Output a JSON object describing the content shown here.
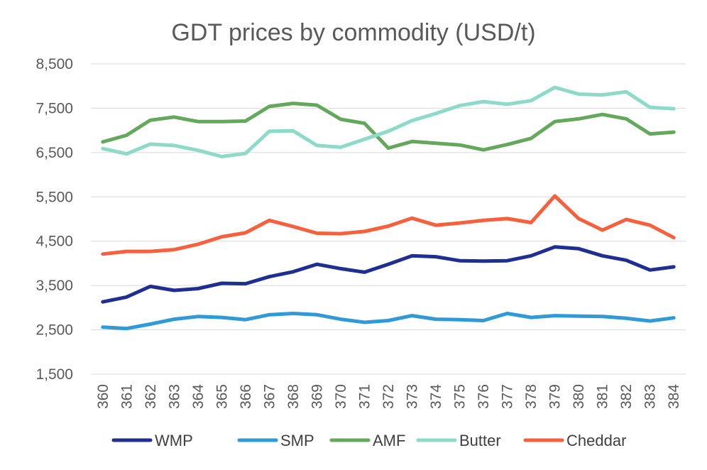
{
  "chart_data": {
    "type": "line",
    "title": "GDT prices by commodity (USD/t)",
    "xlabel": "",
    "ylabel": "",
    "ylim": [
      1500,
      8500
    ],
    "y_ticks": [
      1500,
      2500,
      3500,
      4500,
      5500,
      6500,
      7500,
      8500
    ],
    "y_tick_labels": [
      "1,500",
      "2,500",
      "3,500",
      "4,500",
      "5,500",
      "6,500",
      "7,500",
      "8,500"
    ],
    "grid": true,
    "legend_position": "bottom",
    "categories": [
      "360",
      "361",
      "362",
      "363",
      "364",
      "365",
      "366",
      "367",
      "368",
      "369",
      "370",
      "371",
      "372",
      "373",
      "374",
      "375",
      "376",
      "377",
      "378",
      "379",
      "380",
      "381",
      "382",
      "383",
      "384"
    ],
    "series": [
      {
        "name": "WMP",
        "color": "#1f2f8f",
        "values": [
          3130,
          3240,
          3480,
          3390,
          3430,
          3550,
          3540,
          3700,
          3810,
          3980,
          3880,
          3800,
          3980,
          4170,
          4150,
          4060,
          4050,
          4060,
          4170,
          4370,
          4330,
          4170,
          4070,
          3850,
          3920
        ]
      },
      {
        "name": "SMP",
        "color": "#2e9ad6",
        "values": [
          2560,
          2530,
          2630,
          2740,
          2800,
          2780,
          2730,
          2840,
          2870,
          2840,
          2740,
          2670,
          2710,
          2820,
          2740,
          2730,
          2710,
          2870,
          2780,
          2820,
          2810,
          2800,
          2760,
          2700,
          2770
        ]
      },
      {
        "name": "AMF",
        "color": "#64a85c",
        "values": [
          6740,
          6890,
          7230,
          7300,
          7200,
          7200,
          7210,
          7540,
          7610,
          7570,
          7250,
          7160,
          6600,
          6750,
          6710,
          6670,
          6560,
          6680,
          6820,
          7200,
          7260,
          7360,
          7260,
          6920,
          6960
        ]
      },
      {
        "name": "Butter",
        "color": "#8ddac8",
        "values": [
          6590,
          6470,
          6690,
          6660,
          6550,
          6410,
          6480,
          6980,
          6990,
          6660,
          6620,
          6800,
          6980,
          7220,
          7380,
          7560,
          7650,
          7590,
          7670,
          7970,
          7820,
          7800,
          7870,
          7520,
          7490
        ]
      },
      {
        "name": "Cheddar",
        "color": "#f6603c",
        "values": [
          4210,
          4270,
          4270,
          4310,
          4430,
          4600,
          4690,
          4970,
          4830,
          4680,
          4670,
          4720,
          4840,
          5020,
          4860,
          4910,
          4970,
          5010,
          4920,
          5520,
          5010,
          4750,
          4990,
          4860,
          4580
        ]
      }
    ]
  }
}
